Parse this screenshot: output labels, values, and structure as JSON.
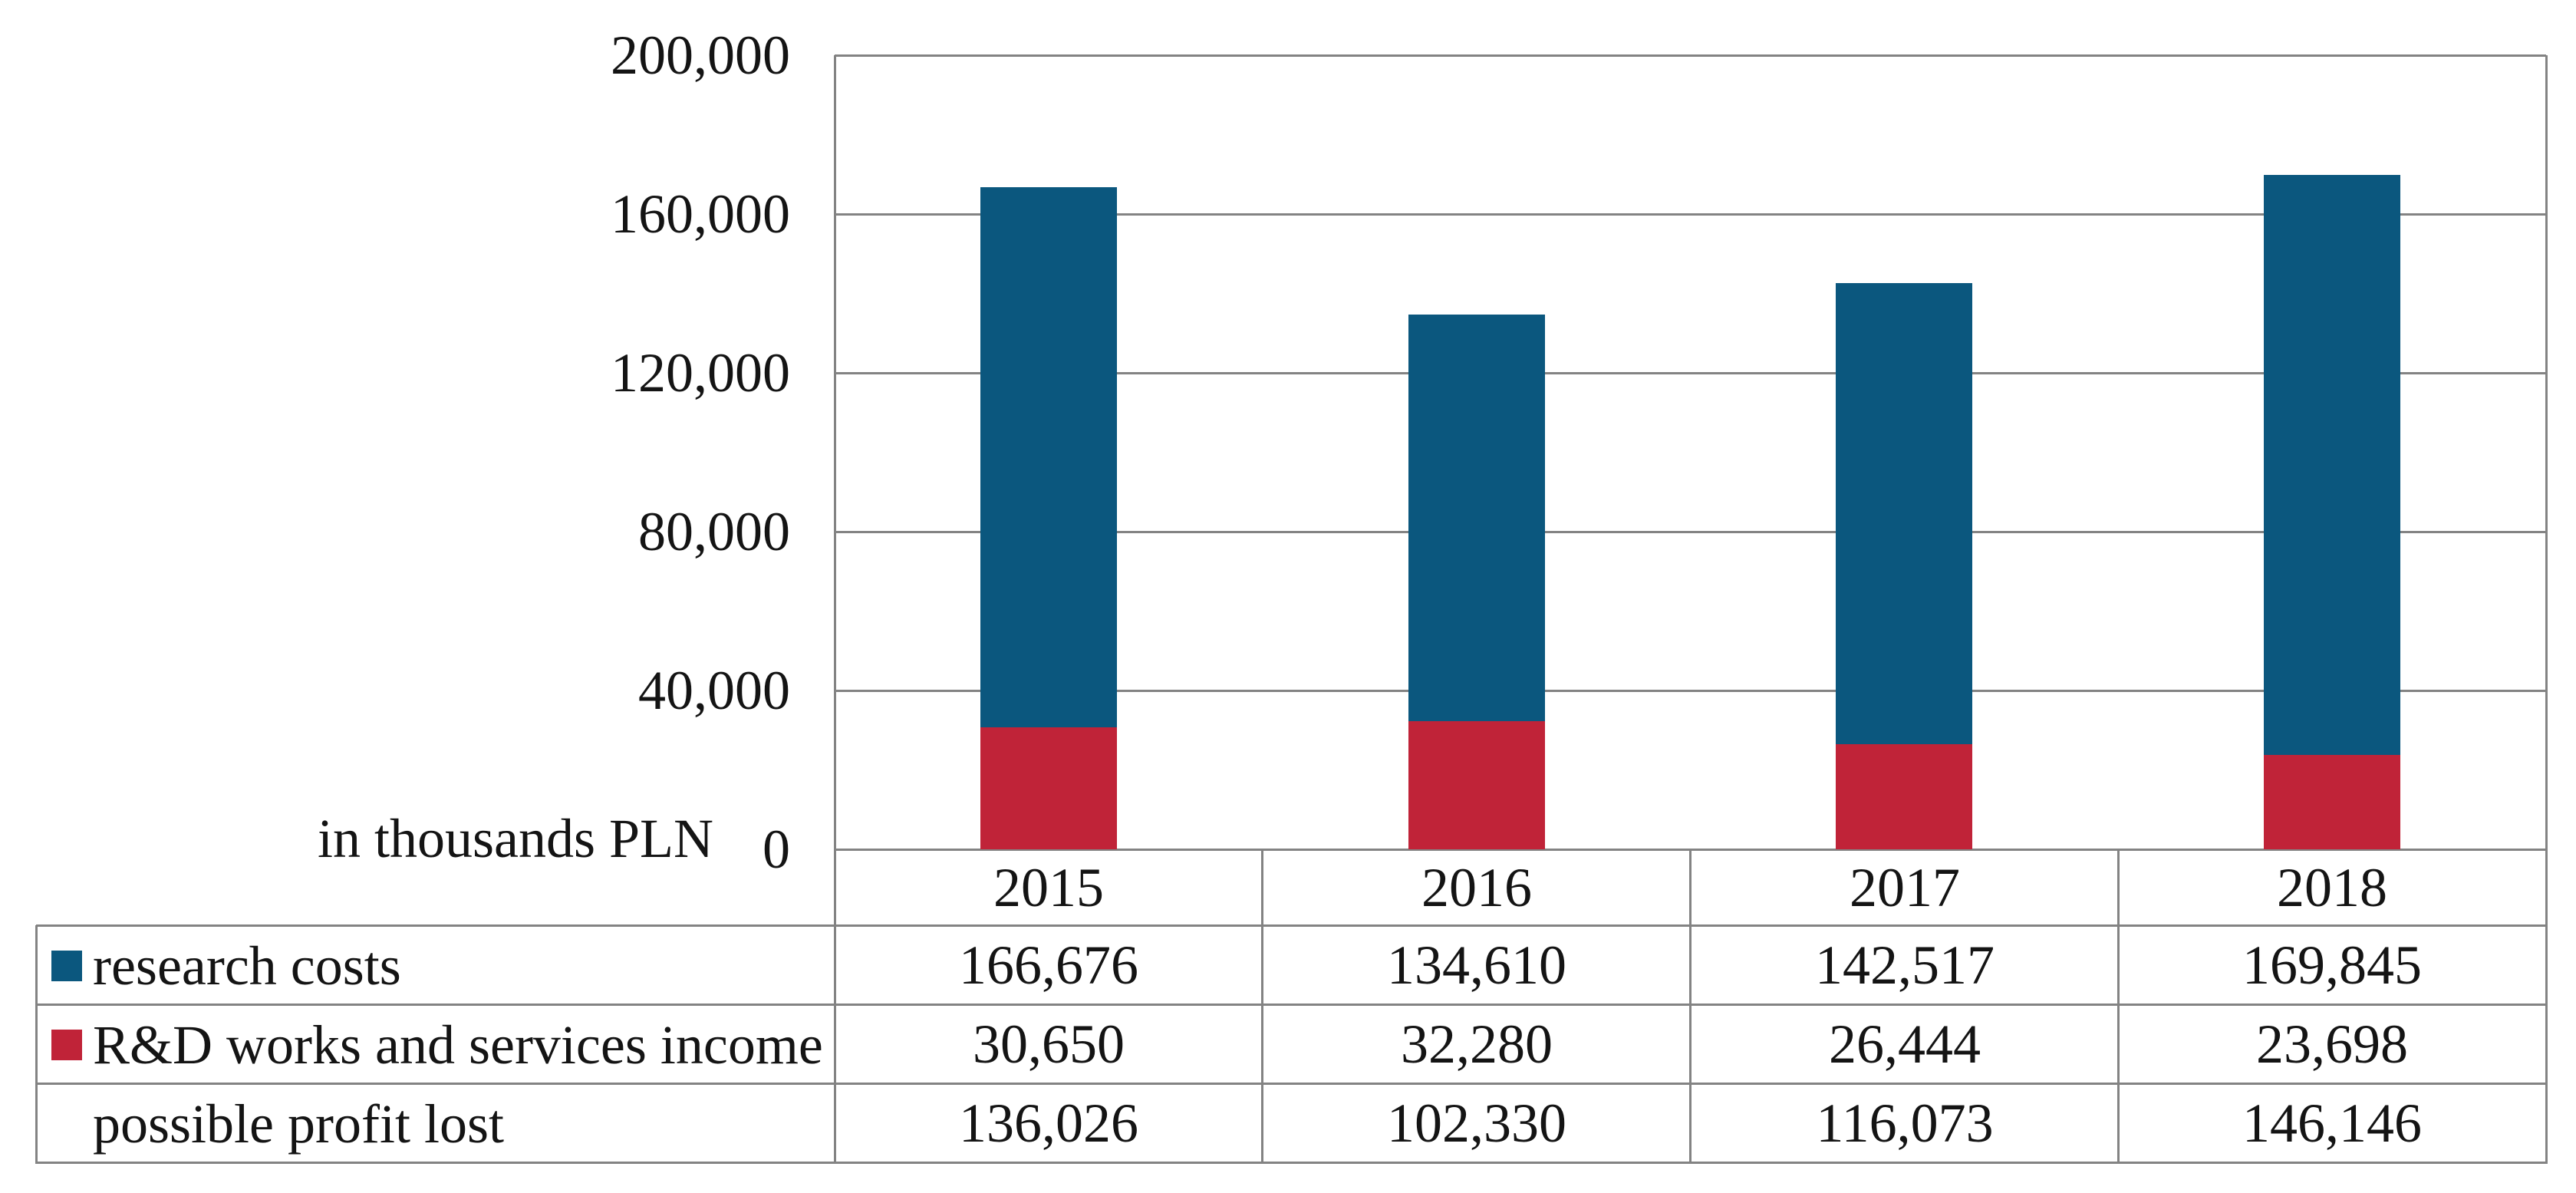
{
  "chart_data": {
    "type": "bar",
    "subtype": "overlapped-columns-with-data-table",
    "title": "",
    "unit_label": "in thousands PLN",
    "categories": [
      "2015",
      "2016",
      "2017",
      "2018"
    ],
    "series": [
      {
        "name": "research costs",
        "color": "#0b577e",
        "in_table_only": false,
        "values": [
          166676,
          134610,
          142517,
          169845
        ]
      },
      {
        "name": "R&D works and services income",
        "color": "#c02338",
        "in_table_only": false,
        "values": [
          30650,
          32280,
          26444,
          23698
        ]
      },
      {
        "name": "possible profit lost",
        "color": null,
        "in_table_only": true,
        "values": [
          136026,
          102330,
          116073,
          146146
        ]
      }
    ],
    "y_axis": {
      "min": 0,
      "max": 200000,
      "tick_step": 40000,
      "tick_labels": [
        "0",
        "40,000",
        "80,000",
        "120,000",
        "160,000",
        "200,000"
      ]
    },
    "grid": true,
    "legend_position": "table-row-headers"
  },
  "table": {
    "header_row": [
      "2015",
      "2016",
      "2017",
      "2018"
    ],
    "rows": [
      {
        "label": "research costs",
        "marker_color": "#0b577e",
        "values": [
          "166,676",
          "134,610",
          "142,517",
          "169,845"
        ]
      },
      {
        "label": "R&D works and services income",
        "marker_color": "#c02338",
        "values": [
          "30,650",
          "32,280",
          "26,444",
          "23,698"
        ]
      },
      {
        "label": "possible profit lost",
        "marker_color": null,
        "values": [
          "136,026",
          "102,330",
          "116,073",
          "146,146"
        ]
      }
    ]
  },
  "colors": {
    "bar_blue": "#0b577e",
    "bar_red": "#c02338",
    "gridline_gray": "#838383",
    "text": "#141414",
    "background": "#ffffff"
  }
}
